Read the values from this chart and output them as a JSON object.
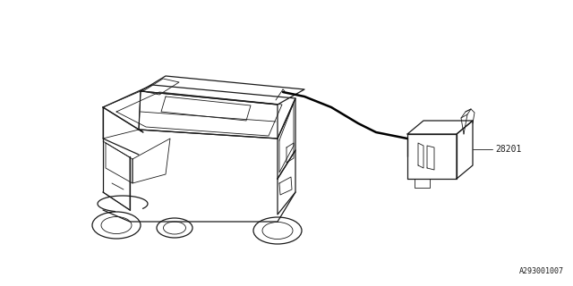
{
  "background_color": "#ffffff",
  "line_color": "#1a1a1a",
  "diagram_id": "A293001007",
  "part_number": "28201",
  "fig_width": 6.4,
  "fig_height": 3.2,
  "dpi": 100
}
